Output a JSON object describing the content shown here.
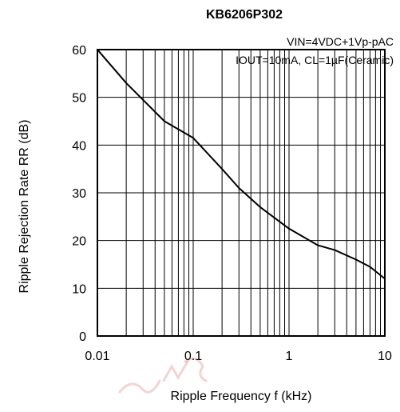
{
  "chart_data": {
    "type": "line",
    "title": "KB6206P302",
    "annotations": [
      "VIN=4VDC+1Vp-pAC",
      "IOUT=10mA, CL=1µF(Ceramic)"
    ],
    "xlabel": "Ripple Frequency f (kHz)",
    "ylabel": "Ripple Rejection Rate RR (dB)",
    "xscale": "log",
    "xlim": [
      0.01,
      10
    ],
    "ylim": [
      0,
      60
    ],
    "xticks": [
      0.01,
      0.1,
      1,
      10
    ],
    "xtick_labels": [
      "0.01",
      "0.1",
      "1",
      "10"
    ],
    "yticks": [
      0,
      10,
      20,
      30,
      40,
      50,
      60
    ],
    "ytick_labels": [
      "0",
      "10",
      "20",
      "30",
      "40",
      "50",
      "60"
    ],
    "grid": true,
    "series": [
      {
        "x": [
          0.01,
          0.02,
          0.05,
          0.1,
          0.2,
          0.3,
          0.5,
          1,
          2,
          3,
          5,
          7,
          10
        ],
        "y": [
          60,
          53,
          45,
          41.5,
          35,
          31,
          27,
          22.5,
          19,
          18,
          16,
          14.5,
          12
        ],
        "color": "#000000"
      }
    ]
  }
}
